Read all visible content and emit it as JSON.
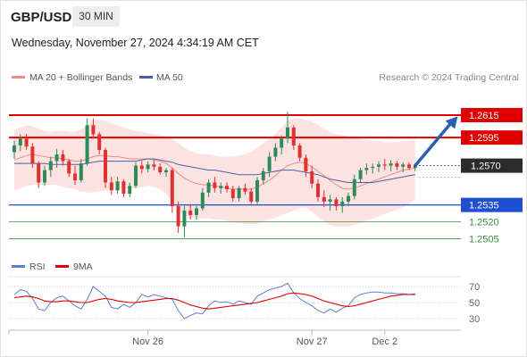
{
  "header": {
    "symbol": "GBP/USD",
    "timeframe": "30 MIN",
    "datetime": "Wednesday, November 27, 2024 4:34:19 AM CET"
  },
  "colors": {
    "ma20": "#f28b82",
    "bollinger_fill": "#fde2e2",
    "ma50": "#4a5fa8",
    "resistance": "#e00000",
    "support_blue": "#1f4fd1",
    "support_green": "#3a8f3a",
    "candle_up": "#2e8b57",
    "candle_down": "#e03030",
    "arrow": "#2c5faa",
    "rsi": "#5b7fd6",
    "rsi_ma": "#e00000"
  },
  "legend": {
    "ma20_label": "MA 20 + Bollinger Bands",
    "ma50_label": "MA 50",
    "credit": "Research © 2024 Trading Central"
  },
  "chart_data": [
    {
      "type": "candlestick",
      "ylim": [
        1.2495,
        1.2638
      ],
      "x_ticks": [
        {
          "index": 22,
          "label": "Nov 26"
        },
        {
          "index": 49,
          "label": "Nov 27"
        },
        {
          "index": 61,
          "label": "Dec 2"
        }
      ],
      "levels": [
        {
          "value": 1.2615,
          "label": "1.2615",
          "kind": "resistance"
        },
        {
          "value": 1.2595,
          "label": "1.2595",
          "kind": "resistance"
        },
        {
          "value": 1.257,
          "label": "1.2570",
          "kind": "current"
        },
        {
          "value": 1.2535,
          "label": "1.2535",
          "kind": "support_blue"
        },
        {
          "value": 1.252,
          "label": "1.2520",
          "kind": "support_green"
        },
        {
          "value": 1.2505,
          "label": "1.2505",
          "kind": "support_green"
        }
      ],
      "candles": [
        [
          1.2582,
          1.2592,
          1.2576,
          1.2588
        ],
        [
          1.2588,
          1.2598,
          1.2583,
          1.2594
        ],
        [
          1.2594,
          1.2598,
          1.2584,
          1.2587
        ],
        [
          1.2587,
          1.259,
          1.2568,
          1.2572
        ],
        [
          1.2572,
          1.2574,
          1.255,
          1.2555
        ],
        [
          1.2555,
          1.257,
          1.2552,
          1.2566
        ],
        [
          1.2566,
          1.2578,
          1.256,
          1.2574
        ],
        [
          1.2574,
          1.2585,
          1.2568,
          1.258
        ],
        [
          1.258,
          1.2584,
          1.257,
          1.2574
        ],
        [
          1.2574,
          1.2576,
          1.256,
          1.2563
        ],
        [
          1.2563,
          1.257,
          1.2553,
          1.2557
        ],
        [
          1.2557,
          1.2576,
          1.2555,
          1.2572
        ],
        [
          1.2572,
          1.2612,
          1.257,
          1.2606
        ],
        [
          1.2606,
          1.2612,
          1.2594,
          1.2598
        ],
        [
          1.2598,
          1.26,
          1.258,
          1.2584
        ],
        [
          1.2584,
          1.2586,
          1.255,
          1.2555
        ],
        [
          1.2555,
          1.256,
          1.2544,
          1.2548
        ],
        [
          1.2548,
          1.256,
          1.2545,
          1.2556
        ],
        [
          1.2556,
          1.2558,
          1.2542,
          1.2545
        ],
        [
          1.2545,
          1.2555,
          1.2542,
          1.2552
        ],
        [
          1.2552,
          1.2573,
          1.255,
          1.257
        ],
        [
          1.257,
          1.2574,
          1.2563,
          1.2567
        ],
        [
          1.2567,
          1.2574,
          1.2564,
          1.2571
        ],
        [
          1.2571,
          1.2575,
          1.2566,
          1.2569
        ],
        [
          1.2569,
          1.2572,
          1.2562,
          1.2564
        ],
        [
          1.2564,
          1.2568,
          1.256,
          1.2566
        ],
        [
          1.2566,
          1.2568,
          1.2528,
          1.2534
        ],
        [
          1.2534,
          1.2538,
          1.251,
          1.2516
        ],
        [
          1.2516,
          1.2534,
          1.2506,
          1.253
        ],
        [
          1.253,
          1.2536,
          1.2522,
          1.2526
        ],
        [
          1.2526,
          1.2534,
          1.2522,
          1.2532
        ],
        [
          1.2532,
          1.255,
          1.253,
          1.2546
        ],
        [
          1.2546,
          1.2558,
          1.2542,
          1.2555
        ],
        [
          1.2555,
          1.256,
          1.2546,
          1.255
        ],
        [
          1.255,
          1.2555,
          1.2545,
          1.2552
        ],
        [
          1.2552,
          1.2555,
          1.2546,
          1.2549
        ],
        [
          1.2549,
          1.2552,
          1.2538,
          1.2541
        ],
        [
          1.2541,
          1.2552,
          1.2538,
          1.255
        ],
        [
          1.255,
          1.2554,
          1.2544,
          1.2547
        ],
        [
          1.2547,
          1.255,
          1.2536,
          1.2538
        ],
        [
          1.2538,
          1.256,
          1.2536,
          1.2557
        ],
        [
          1.2557,
          1.2568,
          1.2553,
          1.2565
        ],
        [
          1.2565,
          1.2582,
          1.256,
          1.2578
        ],
        [
          1.2578,
          1.259,
          1.2574,
          1.2586
        ],
        [
          1.2586,
          1.2597,
          1.258,
          1.2594
        ],
        [
          1.2594,
          1.2618,
          1.259,
          1.2604
        ],
        [
          1.2604,
          1.2606,
          1.2584,
          1.2588
        ],
        [
          1.2588,
          1.259,
          1.2574,
          1.2577
        ],
        [
          1.2577,
          1.258,
          1.256,
          1.2565
        ],
        [
          1.2565,
          1.257,
          1.255,
          1.2554
        ],
        [
          1.2554,
          1.2558,
          1.2538,
          1.2542
        ],
        [
          1.2542,
          1.2548,
          1.2533,
          1.2538
        ],
        [
          1.2538,
          1.2544,
          1.253,
          1.254
        ],
        [
          1.254,
          1.2542,
          1.253,
          1.2534
        ],
        [
          1.2534,
          1.2542,
          1.2528,
          1.2538
        ],
        [
          1.2538,
          1.2546,
          1.2534,
          1.2543
        ],
        [
          1.2543,
          1.2562,
          1.254,
          1.2558
        ],
        [
          1.2558,
          1.2568,
          1.2555,
          1.2566
        ],
        [
          1.2566,
          1.2572,
          1.2562,
          1.2568
        ],
        [
          1.2568,
          1.2572,
          1.2563,
          1.2569
        ],
        [
          1.2569,
          1.2574,
          1.2564,
          1.2571
        ],
        [
          1.2571,
          1.2576,
          1.2566,
          1.257
        ],
        [
          1.257,
          1.2575,
          1.2565,
          1.2572
        ],
        [
          1.2572,
          1.2574,
          1.2566,
          1.2569
        ],
        [
          1.2569,
          1.2573,
          1.2564,
          1.2571
        ],
        [
          1.2571,
          1.2573,
          1.2566,
          1.2568
        ],
        [
          1.2568,
          1.2572,
          1.2565,
          1.257
        ]
      ],
      "ma20": [
        1.2575,
        1.2577,
        1.2579,
        1.258,
        1.2579,
        1.2578,
        1.2577,
        1.2577,
        1.2576,
        1.2575,
        1.2574,
        1.2574,
        1.2576,
        1.2578,
        1.2579,
        1.2579,
        1.2578,
        1.2578,
        1.2577,
        1.2576,
        1.2576,
        1.2576,
        1.2576,
        1.2575,
        1.2574,
        1.2572,
        1.2568,
        1.2563,
        1.2559,
        1.2556,
        1.2554,
        1.2553,
        1.2553,
        1.2552,
        1.2551,
        1.255,
        1.2549,
        1.2549,
        1.2549,
        1.2549,
        1.2551,
        1.2554,
        1.2557,
        1.2561,
        1.2566,
        1.257,
        1.2572,
        1.2573,
        1.2572,
        1.2569,
        1.2565,
        1.2561,
        1.2557,
        1.2553,
        1.255,
        1.2549,
        1.255,
        1.2552,
        1.2554,
        1.2556,
        1.2558,
        1.256,
        1.2562,
        1.2564,
        1.2566,
        1.2567,
        1.2568
      ],
      "bb_upper": [
        1.2602,
        1.2604,
        1.2606,
        1.2605,
        1.2603,
        1.2601,
        1.26,
        1.2601,
        1.2601,
        1.26,
        1.26,
        1.2602,
        1.2606,
        1.261,
        1.2611,
        1.261,
        1.2608,
        1.2606,
        1.2604,
        1.2602,
        1.2601,
        1.26,
        1.2599,
        1.2598,
        1.2597,
        1.2596,
        1.2594,
        1.259,
        1.2586,
        1.2583,
        1.2581,
        1.258,
        1.258,
        1.2579,
        1.2578,
        1.2578,
        1.2578,
        1.2579,
        1.258,
        1.2582,
        1.2586,
        1.259,
        1.2594,
        1.2598,
        1.2604,
        1.261,
        1.2612,
        1.2612,
        1.2611,
        1.2609,
        1.2606,
        1.2603,
        1.26,
        1.2598,
        1.2597,
        1.2596,
        1.2595,
        1.2594,
        1.2593,
        1.2592,
        1.2592,
        1.2591,
        1.2591,
        1.2591,
        1.2592,
        1.2592,
        1.2593
      ],
      "bb_lower": [
        1.2548,
        1.255,
        1.2552,
        1.2553,
        1.2553,
        1.2553,
        1.2553,
        1.2553,
        1.2551,
        1.255,
        1.2549,
        1.2547,
        1.2546,
        1.2546,
        1.2547,
        1.2548,
        1.2548,
        1.2549,
        1.2549,
        1.255,
        1.255,
        1.2551,
        1.2552,
        1.2551,
        1.2549,
        1.2545,
        1.2538,
        1.253,
        1.2526,
        1.2524,
        1.2523,
        1.2523,
        1.2523,
        1.2522,
        1.2522,
        1.2521,
        1.252,
        1.2519,
        1.2518,
        1.2518,
        1.2518,
        1.252,
        1.2522,
        1.2524,
        1.2526,
        1.2528,
        1.253,
        1.2532,
        1.2533,
        1.2529,
        1.2524,
        1.252,
        1.2517,
        1.2516,
        1.2516,
        1.2516,
        1.2517,
        1.2519,
        1.2521,
        1.2523,
        1.2525,
        1.2527,
        1.2529,
        1.2531,
        1.2533,
        1.2536,
        1.254
      ],
      "ma50": [
        1.2572,
        1.2572,
        1.2572,
        1.2572,
        1.2572,
        1.2572,
        1.2571,
        1.2571,
        1.2571,
        1.2571,
        1.2571,
        1.2571,
        1.2572,
        1.2573,
        1.2574,
        1.2574,
        1.2574,
        1.2574,
        1.2574,
        1.2574,
        1.2574,
        1.2575,
        1.2576,
        1.2576,
        1.2575,
        1.2574,
        1.2573,
        1.2571,
        1.257,
        1.2569,
        1.2568,
        1.2567,
        1.2566,
        1.2566,
        1.2565,
        1.2564,
        1.2563,
        1.2562,
        1.2562,
        1.2562,
        1.2562,
        1.2563,
        1.2564,
        1.2565,
        1.2566,
        1.2566,
        1.2566,
        1.2565,
        1.2564,
        1.2563,
        1.2562,
        1.256,
        1.2558,
        1.2557,
        1.2556,
        1.2555,
        1.2555,
        1.2555,
        1.2555,
        1.2555,
        1.2556,
        1.2557,
        1.2558,
        1.2559,
        1.256,
        1.2561,
        1.2562
      ],
      "arrow": {
        "from_index": 66,
        "from_value": 1.257,
        "to_index": 73,
        "to_value": 1.2614
      }
    },
    {
      "type": "line",
      "legend": [
        "RSI",
        "9MA"
      ],
      "ylim": [
        20,
        80
      ],
      "y_ticks": [
        70,
        50,
        30
      ],
      "rsi": [
        60,
        66,
        64,
        55,
        42,
        40,
        50,
        56,
        58,
        52,
        46,
        42,
        54,
        70,
        64,
        58,
        44,
        42,
        48,
        44,
        50,
        60,
        57,
        60,
        58,
        56,
        54,
        40,
        30,
        34,
        37,
        36,
        46,
        52,
        50,
        51,
        48,
        52,
        50,
        48,
        58,
        62,
        66,
        68,
        70,
        74,
        62,
        55,
        50,
        46,
        40,
        37,
        42,
        38,
        43,
        46,
        56,
        60,
        62,
        63,
        63,
        62,
        62,
        61,
        61,
        60,
        61
      ],
      "rsi_ma": [
        56,
        57,
        58,
        57,
        55,
        52,
        51,
        51,
        52,
        52,
        51,
        50,
        50,
        52,
        54,
        55,
        54,
        52,
        51,
        50,
        50,
        51,
        52,
        53,
        54,
        55,
        55,
        53,
        50,
        47,
        45,
        43,
        42,
        43,
        44,
        45,
        46,
        47,
        48,
        49,
        50,
        52,
        54,
        56,
        58,
        61,
        62,
        61,
        60,
        58,
        55,
        52,
        50,
        48,
        46,
        45,
        46,
        48,
        50,
        52,
        54,
        56,
        58,
        59,
        60,
        60,
        60
      ]
    }
  ]
}
